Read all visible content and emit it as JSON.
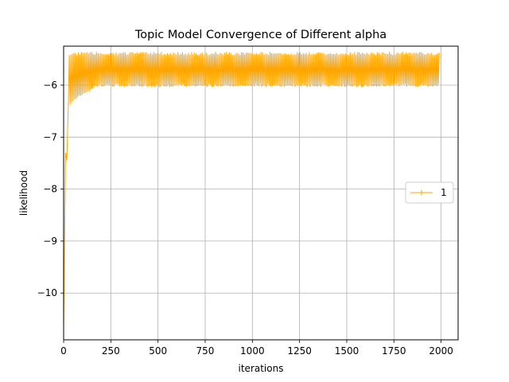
{
  "chart_data": {
    "type": "line",
    "title": "Topic Model Convergence of Different alpha",
    "xlabel": "iterations",
    "ylabel": "likelihood",
    "xlim": [
      0,
      2090
    ],
    "ylim": [
      -10.9,
      -5.25
    ],
    "xticks": [
      0,
      250,
      500,
      750,
      1000,
      1250,
      1500,
      1750,
      2000
    ],
    "yticks": [
      -10,
      -9,
      -8,
      -7,
      -6
    ],
    "xtick_labels": [
      "0",
      "250",
      "500",
      "750",
      "1000",
      "1250",
      "1500",
      "1750",
      "2000"
    ],
    "ytick_labels": [
      "−10",
      "−9",
      "−8",
      "−7",
      "−6"
    ],
    "grid": true,
    "legend_position": "center-right",
    "series": [
      {
        "name": "1",
        "color": "#ffa500",
        "marker": "+",
        "x_start": 0,
        "x_end": 1990,
        "start_value": -10.7,
        "upper_envelope": -5.42,
        "lower_envelope": -5.98,
        "early_dips": [
          {
            "x": 10,
            "y": -7.3
          },
          {
            "x": 17,
            "y": -7.45
          },
          {
            "x": 25,
            "y": -6.4
          }
        ]
      }
    ]
  }
}
